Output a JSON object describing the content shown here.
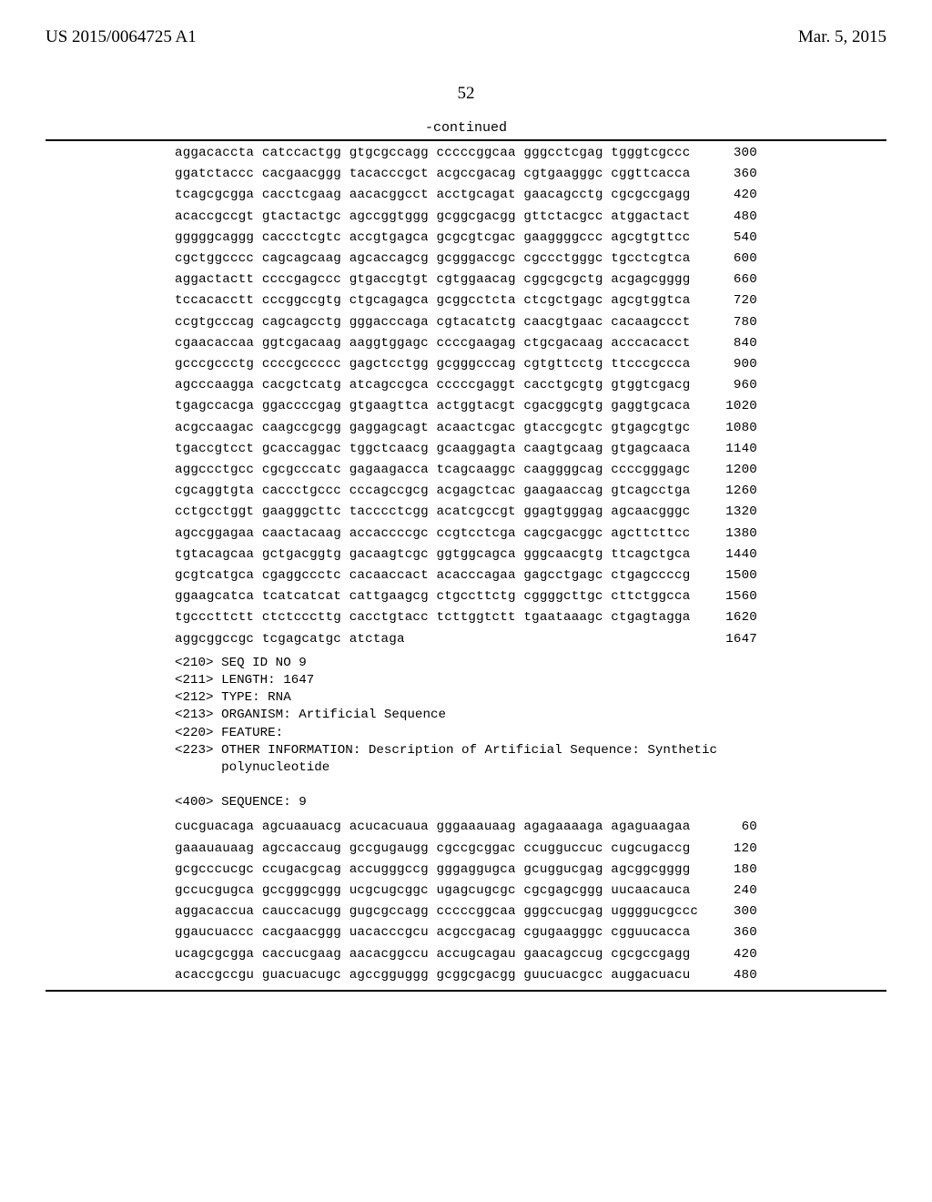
{
  "header": {
    "left": "US 2015/0064725 A1",
    "right": "Mar. 5, 2015"
  },
  "page_number": "52",
  "continued_label": "-continued",
  "seq_block_1": [
    {
      "b": "aggacaccta catccactgg gtgcgccagg cccccggcaa gggcctcgag tgggtcgccc",
      "n": "300"
    },
    {
      "b": "ggatctaccc cacgaacggg tacacccgct acgccgacag cgtgaagggc cggttcacca",
      "n": "360"
    },
    {
      "b": "tcagcgcgga cacctcgaag aacacggcct acctgcagat gaacagcctg cgcgccgagg",
      "n": "420"
    },
    {
      "b": "acaccgccgt gtactactgc agccggtggg gcggcgacgg gttctacgcc atggactact",
      "n": "480"
    },
    {
      "b": "gggggcaggg caccctcgtc accgtgagca gcgcgtcgac gaaggggccc agcgtgttcc",
      "n": "540"
    },
    {
      "b": "cgctggcccc cagcagcaag agcaccagcg gcgggaccgc cgccctgggc tgcctcgtca",
      "n": "600"
    },
    {
      "b": "aggactactt ccccgagccc gtgaccgtgt cgtggaacag cggcgcgctg acgagcgggg",
      "n": "660"
    },
    {
      "b": "tccacacctt cccggccgtg ctgcagagca gcggcctcta ctcgctgagc agcgtggtca",
      "n": "720"
    },
    {
      "b": "ccgtgcccag cagcagcctg gggacccaga cgtacatctg caacgtgaac cacaagccct",
      "n": "780"
    },
    {
      "b": "cgaacaccaa ggtcgacaag aaggtggagc ccccgaagag ctgcgacaag acccacacct",
      "n": "840"
    },
    {
      "b": "gcccgccctg ccccgccccc gagctcctgg gcgggcccag cgtgttcctg ttcccgccca",
      "n": "900"
    },
    {
      "b": "agcccaagga cacgctcatg atcagccgca cccccgaggt cacctgcgtg gtggtcgacg",
      "n": "960"
    },
    {
      "b": "tgagccacga ggaccccgag gtgaagttca actggtacgt cgacggcgtg gaggtgcaca",
      "n": "1020"
    },
    {
      "b": "acgccaagac caagccgcgg gaggagcagt acaactcgac gtaccgcgtc gtgagcgtgc",
      "n": "1080"
    },
    {
      "b": "tgaccgtcct gcaccaggac tggctcaacg gcaaggagta caagtgcaag gtgagcaaca",
      "n": "1140"
    },
    {
      "b": "aggccctgcc cgcgcccatc gagaagacca tcagcaaggc caaggggcag ccccgggagc",
      "n": "1200"
    },
    {
      "b": "cgcaggtgta caccctgccc cccagccgcg acgagctcac gaagaaccag gtcagcctga",
      "n": "1260"
    },
    {
      "b": "cctgcctggt gaagggcttc tacccctcgg acatcgccgt ggagtgggag agcaacgggc",
      "n": "1320"
    },
    {
      "b": "agccggagaa caactacaag accaccccgc ccgtcctcga cagcgacggc agcttcttcc",
      "n": "1380"
    },
    {
      "b": "tgtacagcaa gctgacggtg gacaagtcgc ggtggcagca gggcaacgtg ttcagctgca",
      "n": "1440"
    },
    {
      "b": "gcgtcatgca cgaggccctc cacaaccact acacccagaa gagcctgagc ctgagccccg",
      "n": "1500"
    },
    {
      "b": "ggaagcatca tcatcatcat cattgaagcg ctgccttctg cggggcttgc cttctggcca",
      "n": "1560"
    },
    {
      "b": "tgcccttctt ctctcccttg cacctgtacc tcttggtctt tgaataaagc ctgagtagga",
      "n": "1620"
    },
    {
      "b": "aggcggccgc tcgagcatgc atctaga",
      "n": "1647"
    }
  ],
  "meta_block": "<210> SEQ ID NO 9\n<211> LENGTH: 1647\n<212> TYPE: RNA\n<213> ORGANISM: Artificial Sequence\n<220> FEATURE:\n<223> OTHER INFORMATION: Description of Artificial Sequence: Synthetic\n      polynucleotide\n\n<400> SEQUENCE: 9",
  "seq_block_2": [
    {
      "b": "cucguacaga agcuaauacg acucacuaua gggaaauaag agagaaaaga agaguaagaa",
      "n": "60"
    },
    {
      "b": "gaaauauaag agccaccaug gccgugaugg cgccgcggac ccugguccuc cugcugaccg",
      "n": "120"
    },
    {
      "b": "gcgcccucgc ccugacgcag accugggccg gggaggugca gcuggucgag agcggcgggg",
      "n": "180"
    },
    {
      "b": "gccucgugca gccgggcggg ucgcugcggc ugagcugcgc cgcgagcggg uucaacauca",
      "n": "240"
    },
    {
      "b": "aggacaccua cauccacugg gugcgccagg cccccggcaa gggccucgag uggggucgccc",
      "n": "300"
    },
    {
      "b": "ggaucuaccc cacgaacggg uacacccgcu acgccgacag cgugaagggc cgguucacca",
      "n": "360"
    },
    {
      "b": "ucagcgcgga caccucgaag aacacggccu accugcagau gaacagccug cgcgccgagg",
      "n": "420"
    },
    {
      "b": "acaccgccgu guacuacugc agccgguggg gcggcgacgg guucuacgcc auggacuacu",
      "n": "480"
    }
  ]
}
